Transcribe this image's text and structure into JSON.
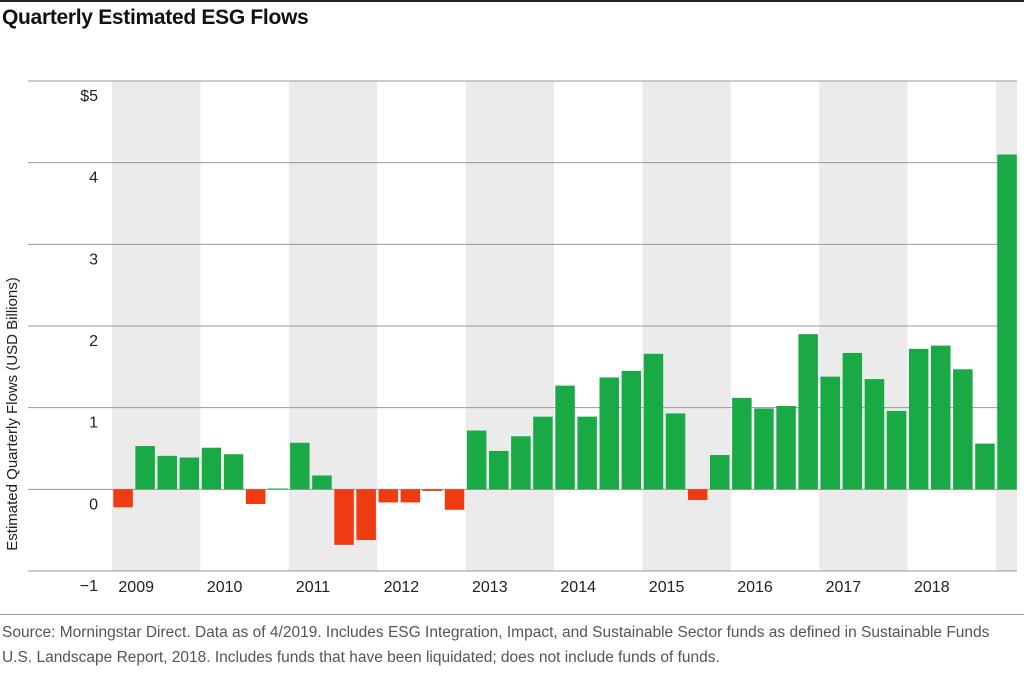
{
  "title": "Quarterly Estimated ESG Flows",
  "source": "Source: Morningstar Direct. Data as of 4/2019. Includes ESG Integration, Impact, and Sustainable Sector funds as defined in Sustainable Funds U.S. Landscape Report, 2018. Includes funds that have been liquidated; does not include funds of funds.",
  "colors": {
    "positive": "#1aaa45",
    "negative": "#ee3b12",
    "band": "#ebebeb",
    "grid": "#999999"
  },
  "chart_data": {
    "type": "bar",
    "title": "Quarterly Estimated ESG Flows",
    "ylabel": "Estimated Quarterly Flows (USD Billions)",
    "xlabel": "",
    "ylim": [
      -1,
      5
    ],
    "yticks": [
      {
        "value": 5,
        "label": "$5"
      },
      {
        "value": 4,
        "label": "4"
      },
      {
        "value": 3,
        "label": "3"
      },
      {
        "value": 2,
        "label": "2"
      },
      {
        "value": 1,
        "label": "1"
      },
      {
        "value": 0,
        "label": "0"
      },
      {
        "value": -1,
        "label": "−1"
      }
    ],
    "years": [
      "2009",
      "2010",
      "2011",
      "2012",
      "2013",
      "2014",
      "2015",
      "2016",
      "2017",
      "2018"
    ],
    "grid": true,
    "legend": "none",
    "values": [
      -0.22,
      0.53,
      0.41,
      0.39,
      0.51,
      0.43,
      -0.18,
      0.01,
      0.57,
      0.17,
      -0.68,
      -0.62,
      -0.16,
      -0.16,
      -0.02,
      -0.25,
      0.72,
      0.47,
      0.65,
      0.89,
      1.27,
      0.89,
      1.37,
      1.45,
      1.66,
      0.93,
      -0.13,
      0.42,
      1.12,
      0.99,
      1.02,
      1.9,
      1.38,
      1.67,
      1.35,
      0.96,
      1.72,
      1.76,
      1.47,
      0.56,
      4.1
    ]
  }
}
